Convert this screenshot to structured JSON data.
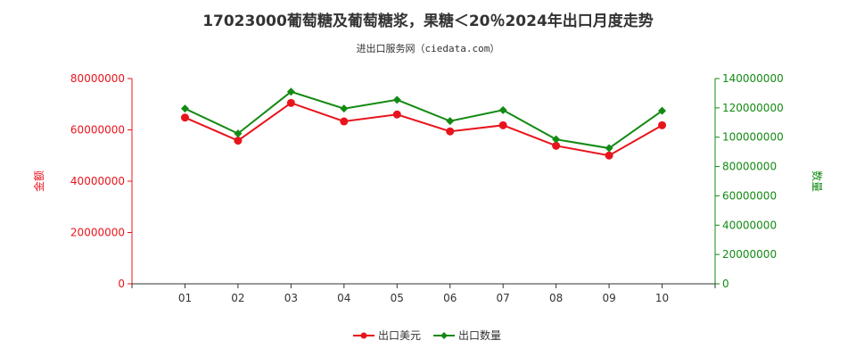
{
  "chart_data": {
    "type": "line",
    "title": "17023000葡萄糖及葡萄糖浆，果糖＜20％2024年出口月度走势",
    "subtitle": "进出口服务网（ciedata.com）",
    "categories": [
      "01",
      "02",
      "03",
      "04",
      "05",
      "06",
      "07",
      "08",
      "09",
      "10"
    ],
    "series": [
      {
        "name": "出口美元",
        "axis": "left",
        "color": "#e8141c",
        "values": [
          64800000,
          55800000,
          70500000,
          63300000,
          66000000,
          59400000,
          61800000,
          53800000,
          50000000,
          61800000
        ]
      },
      {
        "name": "出口数量",
        "axis": "right",
        "color": "#138a13",
        "values": [
          119500000,
          102500000,
          131000000,
          119500000,
          125500000,
          111000000,
          118500000,
          98500000,
          92500000,
          118000000
        ]
      }
    ],
    "left_axis": {
      "label": "金额",
      "ylim": [
        0,
        80000000
      ],
      "ticks": [
        "0",
        "20000000",
        "40000000",
        "60000000",
        "80000000"
      ],
      "color": "#e8141c"
    },
    "right_axis": {
      "label": "数量",
      "ylim": [
        0,
        140000000
      ],
      "ticks": [
        "0",
        "20000000",
        "40000000",
        "60000000",
        "80000000",
        "100000000",
        "120000000",
        "140000000"
      ],
      "color": "#138a13"
    },
    "grid": false,
    "legend_position": "bottom-center"
  }
}
